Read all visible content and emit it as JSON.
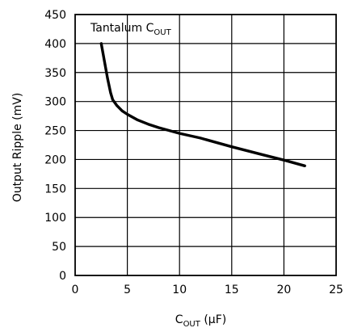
{
  "chart_data": {
    "type": "line",
    "xlabel": {
      "main": "C",
      "sub": "OUT",
      "suffix": " (μF)"
    },
    "ylabel": "Output Ripple (mV)",
    "annotation": {
      "main": "Tantalum C",
      "sub": "OUT"
    },
    "xlim": [
      0,
      25
    ],
    "ylim": [
      0,
      450
    ],
    "xticks": [
      0,
      5,
      10,
      15,
      20,
      25
    ],
    "yticks": [
      0,
      50,
      100,
      150,
      200,
      250,
      300,
      350,
      400,
      450
    ],
    "grid": true,
    "series": [
      {
        "color": "#000000",
        "x": [
          2.5,
          2.8,
          3.1,
          3.4,
          3.6,
          4.0,
          4.5,
          5.0,
          6.0,
          7.0,
          8.0,
          10.0,
          12.0,
          15.0,
          18.0,
          20.0,
          22.0
        ],
        "y": [
          400,
          370,
          340,
          315,
          303,
          293,
          284,
          278,
          268,
          261,
          255,
          245,
          237,
          222,
          208,
          199,
          189
        ]
      }
    ]
  }
}
